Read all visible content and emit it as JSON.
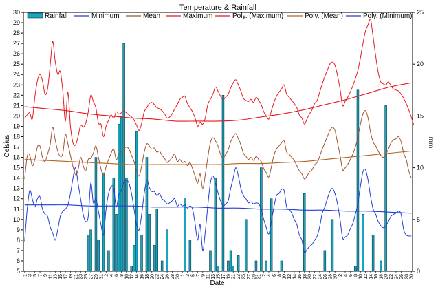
{
  "colors": {
    "rainfall": "#17a5c0",
    "rainfall_stroke": "#0b3d4a",
    "minimum": "#1f3fd6",
    "mean": "#a0522d",
    "maximum": "#e8171f",
    "poly_maximum": "#e8171f",
    "poly_mean": "#b4641e",
    "poly_minimum": "#1f3fd6"
  },
  "chart_data": {
    "type": "line",
    "title": "Temperature & Rainfall",
    "xlabel": "Date",
    "ylabel": "Celsius",
    "y2label": "mm",
    "ylim": [
      5,
      30
    ],
    "y2lim": [
      0,
      25
    ],
    "grid": false,
    "legend": "top",
    "n_days": 153,
    "x_tick_labels": [
      "1",
      "3",
      "5",
      "7",
      "9",
      "11",
      "13",
      "15",
      "17",
      "19",
      "21",
      "23",
      "25",
      "27",
      "29",
      "31",
      "2",
      "4",
      "6",
      "8",
      "10",
      "12",
      "14",
      "16",
      "18",
      "20",
      "22",
      "24",
      "26",
      "28",
      "30",
      "1",
      "3",
      "5",
      "7",
      "9",
      "11",
      "13",
      "15",
      "17",
      "19",
      "21",
      "23",
      "25",
      "27",
      "29",
      "31",
      "2",
      "4",
      "6",
      "8",
      "10",
      "12",
      "14",
      "16",
      "18",
      "20",
      "22",
      "24",
      "26",
      "28",
      "30",
      "2",
      "4",
      "6",
      "8",
      "10",
      "12",
      "14",
      "16",
      "18",
      "20",
      "22",
      "24",
      "26",
      "28",
      "30"
    ],
    "legend_entries": [
      "Rainfall",
      "Minimum",
      "Mean",
      "Maximum",
      "Poly. (Maximum)",
      "Poly. (Mean)",
      "Poly. (Minimum)"
    ],
    "series": [
      {
        "name": "Minimum",
        "key": "minimum",
        "kind": "line",
        "axis": "left",
        "values": [
          7.9,
          11,
          12.8,
          12,
          11.2,
          12,
          12.2,
          11,
          10.5,
          10.3,
          9.3,
          8.7,
          8,
          9,
          10.3,
          10.8,
          11,
          11.4,
          12.5,
          14,
          15,
          13.5,
          12,
          10.5,
          9.8,
          10.3,
          13.5,
          11.6,
          12,
          10.8,
          9.5,
          8.5,
          11,
          12.5,
          13.2,
          13,
          11.2,
          12.4,
          12.8,
          13.6,
          13.8,
          13.5,
          12.5,
          11,
          9.5,
          9,
          10.5,
          12.5,
          13.8,
          13.1,
          12.7,
          12.7,
          12.3,
          12.5,
          12,
          11.8,
          11.5,
          11.6,
          11.8,
          12,
          11.3,
          11.5,
          11.3,
          11.4,
          11.1,
          11.3,
          11,
          9.6,
          8,
          9.5,
          7,
          8.8,
          11.3,
          13.5,
          14.2,
          13.5,
          12.6,
          11.8,
          11.3,
          11.5,
          11.8,
          13,
          14,
          15,
          14.2,
          13,
          12.3,
          12,
          11.6,
          11.7,
          11.5,
          11.6,
          11.5,
          11,
          10,
          9.2,
          8.6,
          9.8,
          11.2,
          12.3,
          12.5,
          12.9,
          12.8,
          11.2,
          11,
          10.6,
          10,
          9.5,
          8.5,
          8,
          6.8,
          7.1,
          7.4,
          7.6,
          8,
          8.4,
          9.3,
          10.6,
          11.2,
          12,
          12.7,
          13,
          12.5,
          11.5,
          10,
          8.2,
          8.3,
          8.5,
          9.1,
          9.6,
          10.5,
          11.5,
          13.2,
          14.6,
          14.8,
          13.8,
          12.2,
          11,
          10.5,
          9.8,
          9.4,
          9.2,
          9.4,
          9.8,
          10.3,
          10.5,
          10.6,
          10.8,
          10.5,
          9,
          8.5,
          8.4,
          8.4
        ]
      },
      {
        "name": "Mean",
        "key": "mean",
        "kind": "line",
        "axis": "left",
        "values": [
          13.9,
          16.1,
          16.2,
          15.2,
          15.8,
          17,
          17.1,
          16,
          15.6,
          16.3,
          17.2,
          18.9,
          17.7,
          16.6,
          16.1,
          16.4,
          18.2,
          17.3,
          16.2,
          15.1,
          14.3,
          14.8,
          16,
          15.2,
          14.7,
          15.8,
          15.9,
          16.4,
          17.1,
          16,
          14.9,
          14.2,
          15.1,
          15.8,
          16.4,
          16.8,
          15.8,
          16.3,
          16.5,
          16.8,
          17,
          16.8,
          16.2,
          15.6,
          14.7,
          14.2,
          15.2,
          16.5,
          17.3,
          17.1,
          16.8,
          16.9,
          16.5,
          16.6,
          16.2,
          15.9,
          15.5,
          15.7,
          16,
          16.3,
          15.6,
          15.8,
          15.5,
          15.6,
          15.2,
          15.5,
          14.9,
          14.2,
          13.5,
          14.4,
          13,
          14.3,
          16,
          17.4,
          17.9,
          17.6,
          17.1,
          16.3,
          15.9,
          16.3,
          16.7,
          17.5,
          18,
          18.3,
          17.8,
          17.2,
          16.4,
          16.1,
          15.8,
          16,
          15.7,
          16.1,
          15.8,
          15.6,
          14.9,
          14.5,
          14.1,
          15.1,
          16.2,
          16.8,
          17.1,
          17.4,
          17.6,
          16.5,
          16.3,
          16,
          15.7,
          15.2,
          14.7,
          14.4,
          13.9,
          14.2,
          14.6,
          14.8,
          15.3,
          15.5,
          16.1,
          16.8,
          17.4,
          18,
          18.6,
          18.9,
          18.6,
          17.4,
          16.2,
          14.8,
          15,
          15.3,
          15.8,
          16.3,
          17,
          17.9,
          19.2,
          20.2,
          20.5,
          19.8,
          18.4,
          17.5,
          17.1,
          16.6,
          16.2,
          16,
          16.3,
          16.8,
          17.4,
          17.7,
          17.8,
          18,
          17.5,
          16.4,
          15.8,
          14.7,
          14
        ]
      },
      {
        "name": "Maximum",
        "key": "maximum",
        "kind": "line",
        "axis": "left",
        "values": [
          19.8,
          20.1,
          20.3,
          19.7,
          21.8,
          23.4,
          24,
          23.4,
          22.1,
          22.6,
          24.8,
          27.2,
          25.3,
          24,
          24.3,
          22.4,
          19.5,
          22.3,
          19,
          17.4,
          17.2,
          18,
          19.1,
          18.9,
          19.3,
          20.4,
          22,
          21.4,
          20.8,
          19.3,
          19.2,
          18,
          19,
          19.6,
          20.1,
          19.8,
          20.4,
          20.2,
          20.3,
          20.5,
          20.3,
          20.1,
          19.9,
          19.6,
          19.1,
          18.6,
          19.3,
          20.4,
          20.8,
          21.2,
          21.3,
          21.1,
          20.8,
          20.7,
          20.5,
          20.2,
          19.8,
          19.9,
          20.2,
          20.7,
          21.1,
          21.6,
          21.8,
          21.9,
          21.2,
          20.8,
          20.4,
          19.8,
          19,
          19.4,
          19.2,
          19.8,
          21.1,
          21.6,
          22.1,
          22.8,
          22.4,
          21.9,
          21.6,
          21.8,
          22.1,
          22.7,
          23.2,
          23.5,
          23,
          22.4,
          21.7,
          21.5,
          21.4,
          21.6,
          21.3,
          21.8,
          21.5,
          21.1,
          20.4,
          20,
          19.7,
          20.5,
          21.3,
          21.9,
          22.3,
          22.6,
          23,
          22.1,
          21.8,
          21.5,
          21.2,
          20.8,
          20.1,
          19.8,
          19.2,
          19.7,
          20.2,
          20.6,
          21.2,
          21.5,
          22.3,
          23.1,
          23.8,
          24.4,
          25,
          25.2,
          24.9,
          23.9,
          22.6,
          21,
          21.4,
          21.8,
          22.3,
          22.9,
          23.6,
          24.4,
          25.6,
          27,
          28.2,
          28.8,
          29.3,
          27.6,
          25.8,
          24.2,
          23.3,
          23.1,
          23,
          23.3,
          22.9,
          22.6,
          22.5,
          22.4,
          22.1,
          21.7,
          21.2,
          20.6,
          19.9,
          19.1
        ]
      },
      {
        "name": "Rainfall",
        "key": "rainfall",
        "kind": "bar",
        "axis": "right",
        "values": [
          0,
          0,
          0,
          0,
          0,
          0,
          0,
          0,
          0,
          0,
          0,
          0,
          0,
          0,
          0,
          0,
          0,
          0,
          0,
          0,
          0,
          0,
          0,
          0,
          0,
          3.5,
          4,
          0,
          11,
          3,
          0,
          9.5,
          0,
          2,
          0,
          9,
          5.5,
          14.2,
          15,
          22,
          9,
          0,
          0.5,
          2.5,
          13.5,
          0,
          3.5,
          0,
          11,
          5.5,
          0,
          2.5,
          6,
          0,
          1,
          0,
          4,
          0,
          0,
          0,
          0,
          0,
          0,
          7,
          0,
          3,
          0,
          0,
          0,
          0,
          0,
          0,
          0,
          2,
          0,
          9,
          0.5,
          0,
          17,
          0,
          1,
          2,
          0.5,
          0,
          1.5,
          0,
          0,
          5,
          0,
          0,
          0,
          1,
          0,
          10,
          0,
          1,
          0,
          7,
          0,
          0,
          0,
          1,
          0,
          0,
          0,
          0,
          0,
          0,
          0,
          0,
          7.5,
          0,
          0,
          0,
          0,
          0,
          0,
          0,
          2,
          0,
          0,
          5,
          0,
          0,
          0,
          0,
          0,
          0,
          0,
          0,
          0.5,
          17.5,
          0,
          5.5,
          0,
          0,
          0,
          3.5,
          0,
          0,
          1,
          0,
          16,
          0,
          0,
          0,
          0,
          0,
          0,
          0,
          0,
          0,
          0,
          0
        ]
      },
      {
        "name": "Poly. (Maximum)",
        "key": "poly_maximum",
        "kind": "line",
        "axis": "left",
        "values": [
          20.9,
          20.7,
          20.5,
          20.2,
          20.0,
          19.8,
          19.7,
          19.5,
          19.5,
          19.5,
          19.6,
          19.9,
          20.2,
          20.6,
          21.1,
          21.6,
          22.2,
          22.8,
          23.2
        ]
      },
      {
        "name": "Poly. (Mean)",
        "key": "poly_mean",
        "kind": "line",
        "axis": "left",
        "values": [
          15.8,
          15.7,
          15.6,
          15.5,
          15.4,
          15.3,
          15.3,
          15.3,
          15.3,
          15.3,
          15.4,
          15.4,
          15.5,
          15.6,
          15.8,
          16.0,
          16.2,
          16.4,
          16.6
        ]
      },
      {
        "name": "Poly. (Minimum)",
        "key": "poly_minimum",
        "kind": "line",
        "axis": "left",
        "values": [
          11.4,
          11.4,
          11.4,
          11.3,
          11.3,
          11.3,
          11.2,
          11.2,
          11.2,
          11.1,
          11.1,
          11.0,
          11.0,
          10.9,
          10.9,
          10.8,
          10.8,
          10.7,
          10.6
        ]
      }
    ]
  }
}
